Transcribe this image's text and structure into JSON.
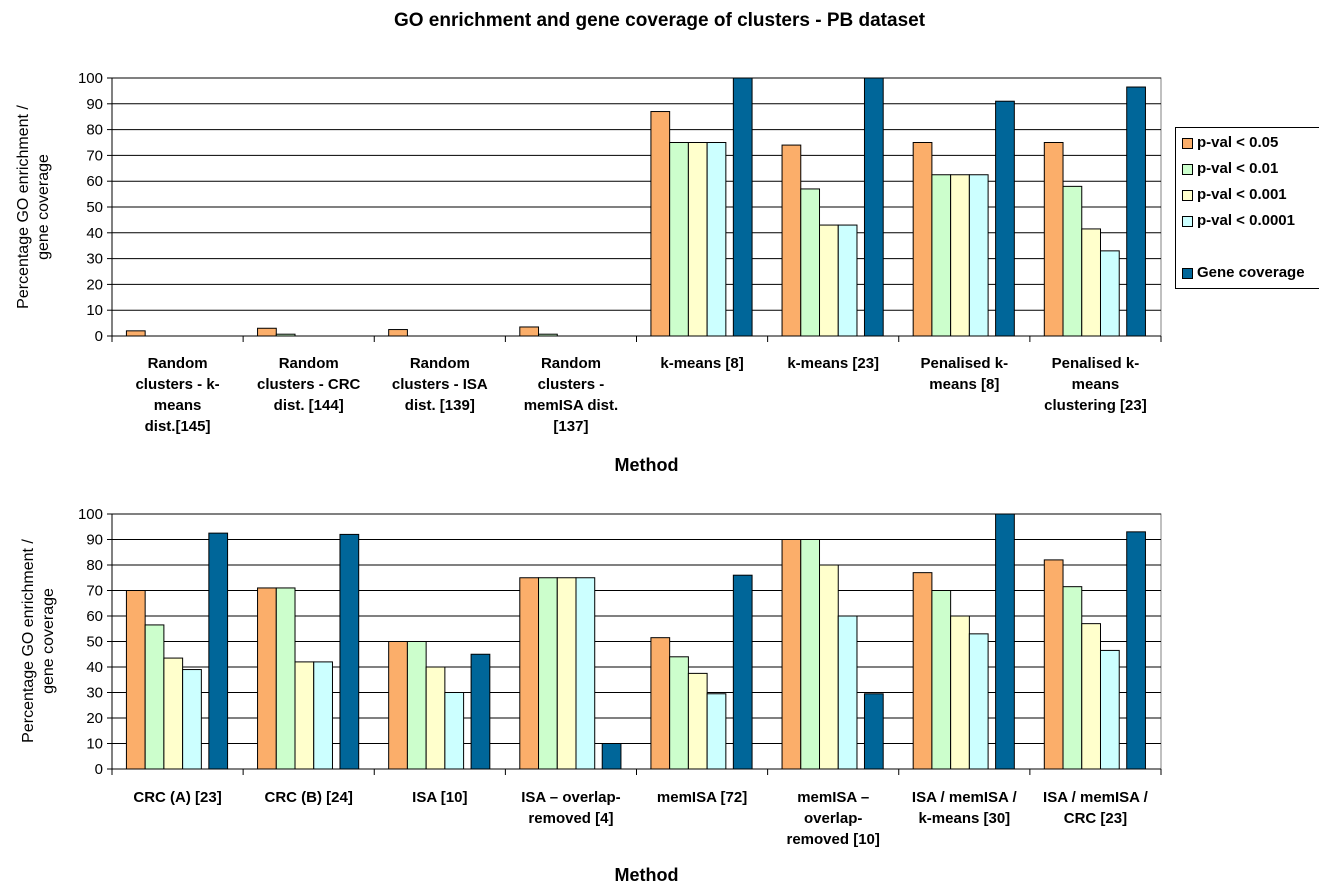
{
  "title": "GO enrichment and gene coverage of clusters - PB dataset",
  "legend": {
    "items": [
      {
        "label": "p-val < 0.05",
        "color": "#FBAE6A"
      },
      {
        "label": "p-val < 0.01",
        "color": "#CCFECC"
      },
      {
        "label": "p-val < 0.001",
        "color": "#FFFFCC"
      },
      {
        "label": "p-val < 0.0001",
        "color": "#CCFFFF"
      },
      {
        "label": "Gene coverage",
        "color": "#006699"
      }
    ]
  },
  "chart_data": [
    {
      "type": "bar",
      "xlabel": "Method",
      "ylabel": "Percentage GO enrichment / gene coverage",
      "ylim": [
        0,
        100
      ],
      "yticks": [
        0,
        10,
        20,
        30,
        40,
        50,
        60,
        70,
        80,
        90,
        100
      ],
      "grid": true,
      "categories": [
        [
          "Random",
          "clusters - k-",
          "means",
          "dist.[145]"
        ],
        [
          "Random",
          "clusters - CRC",
          "dist. [144]"
        ],
        [
          "Random",
          "clusters - ISA",
          "dist. [139]"
        ],
        [
          "Random",
          "clusters -",
          "memISA dist.",
          "[137]"
        ],
        [
          "k-means [8]"
        ],
        [
          "k-means [23]"
        ],
        [
          "Penalised k-",
          "means [8]"
        ],
        [
          "Penalised k-",
          "means",
          "clustering [23]"
        ]
      ],
      "series": [
        {
          "name": "p-val < 0.05",
          "values": [
            2,
            3,
            2.5,
            3.5,
            87,
            74,
            75,
            75
          ]
        },
        {
          "name": "p-val < 0.01",
          "values": [
            0,
            0.7,
            0,
            0.7,
            75,
            57,
            62.5,
            58
          ]
        },
        {
          "name": "p-val < 0.001",
          "values": [
            0,
            0,
            0,
            0,
            75,
            43,
            62.5,
            41.5
          ]
        },
        {
          "name": "p-val < 0.0001",
          "values": [
            0,
            0,
            0,
            0,
            75,
            43,
            62.5,
            33
          ]
        },
        {
          "name": "Gene coverage",
          "values": [
            0,
            0,
            0,
            0,
            100,
            100,
            91,
            96.5
          ]
        }
      ]
    },
    {
      "type": "bar",
      "xlabel": "Method",
      "ylabel": "Percentage GO enrichment / gene coverage",
      "ylim": [
        0,
        100
      ],
      "yticks": [
        0,
        10,
        20,
        30,
        40,
        50,
        60,
        70,
        80,
        90,
        100
      ],
      "grid": true,
      "categories": [
        [
          "CRC (A) [23]"
        ],
        [
          "CRC (B) [24]"
        ],
        [
          "ISA [10]"
        ],
        [
          "ISA – overlap-",
          "removed [4]"
        ],
        [
          "memISA [72]"
        ],
        [
          "memISA –",
          "overlap-",
          "removed [10]"
        ],
        [
          "ISA / memISA /",
          "k-means [30]"
        ],
        [
          "ISA / memISA /",
          "CRC [23]"
        ]
      ],
      "series": [
        {
          "name": "p-val < 0.05",
          "values": [
            70,
            71,
            50,
            75,
            51.5,
            90,
            77,
            82
          ]
        },
        {
          "name": "p-val < 0.01",
          "values": [
            56.5,
            71,
            50,
            75,
            44,
            90,
            70,
            71.5
          ]
        },
        {
          "name": "p-val < 0.001",
          "values": [
            43.5,
            42,
            40,
            75,
            37.5,
            80,
            60,
            57
          ]
        },
        {
          "name": "p-val < 0.0001",
          "values": [
            39,
            42,
            30,
            75,
            29.5,
            60,
            53,
            46.5
          ]
        },
        {
          "name": "Gene coverage",
          "values": [
            92.5,
            92,
            45,
            10,
            76,
            29.5,
            100,
            93
          ]
        }
      ]
    }
  ]
}
